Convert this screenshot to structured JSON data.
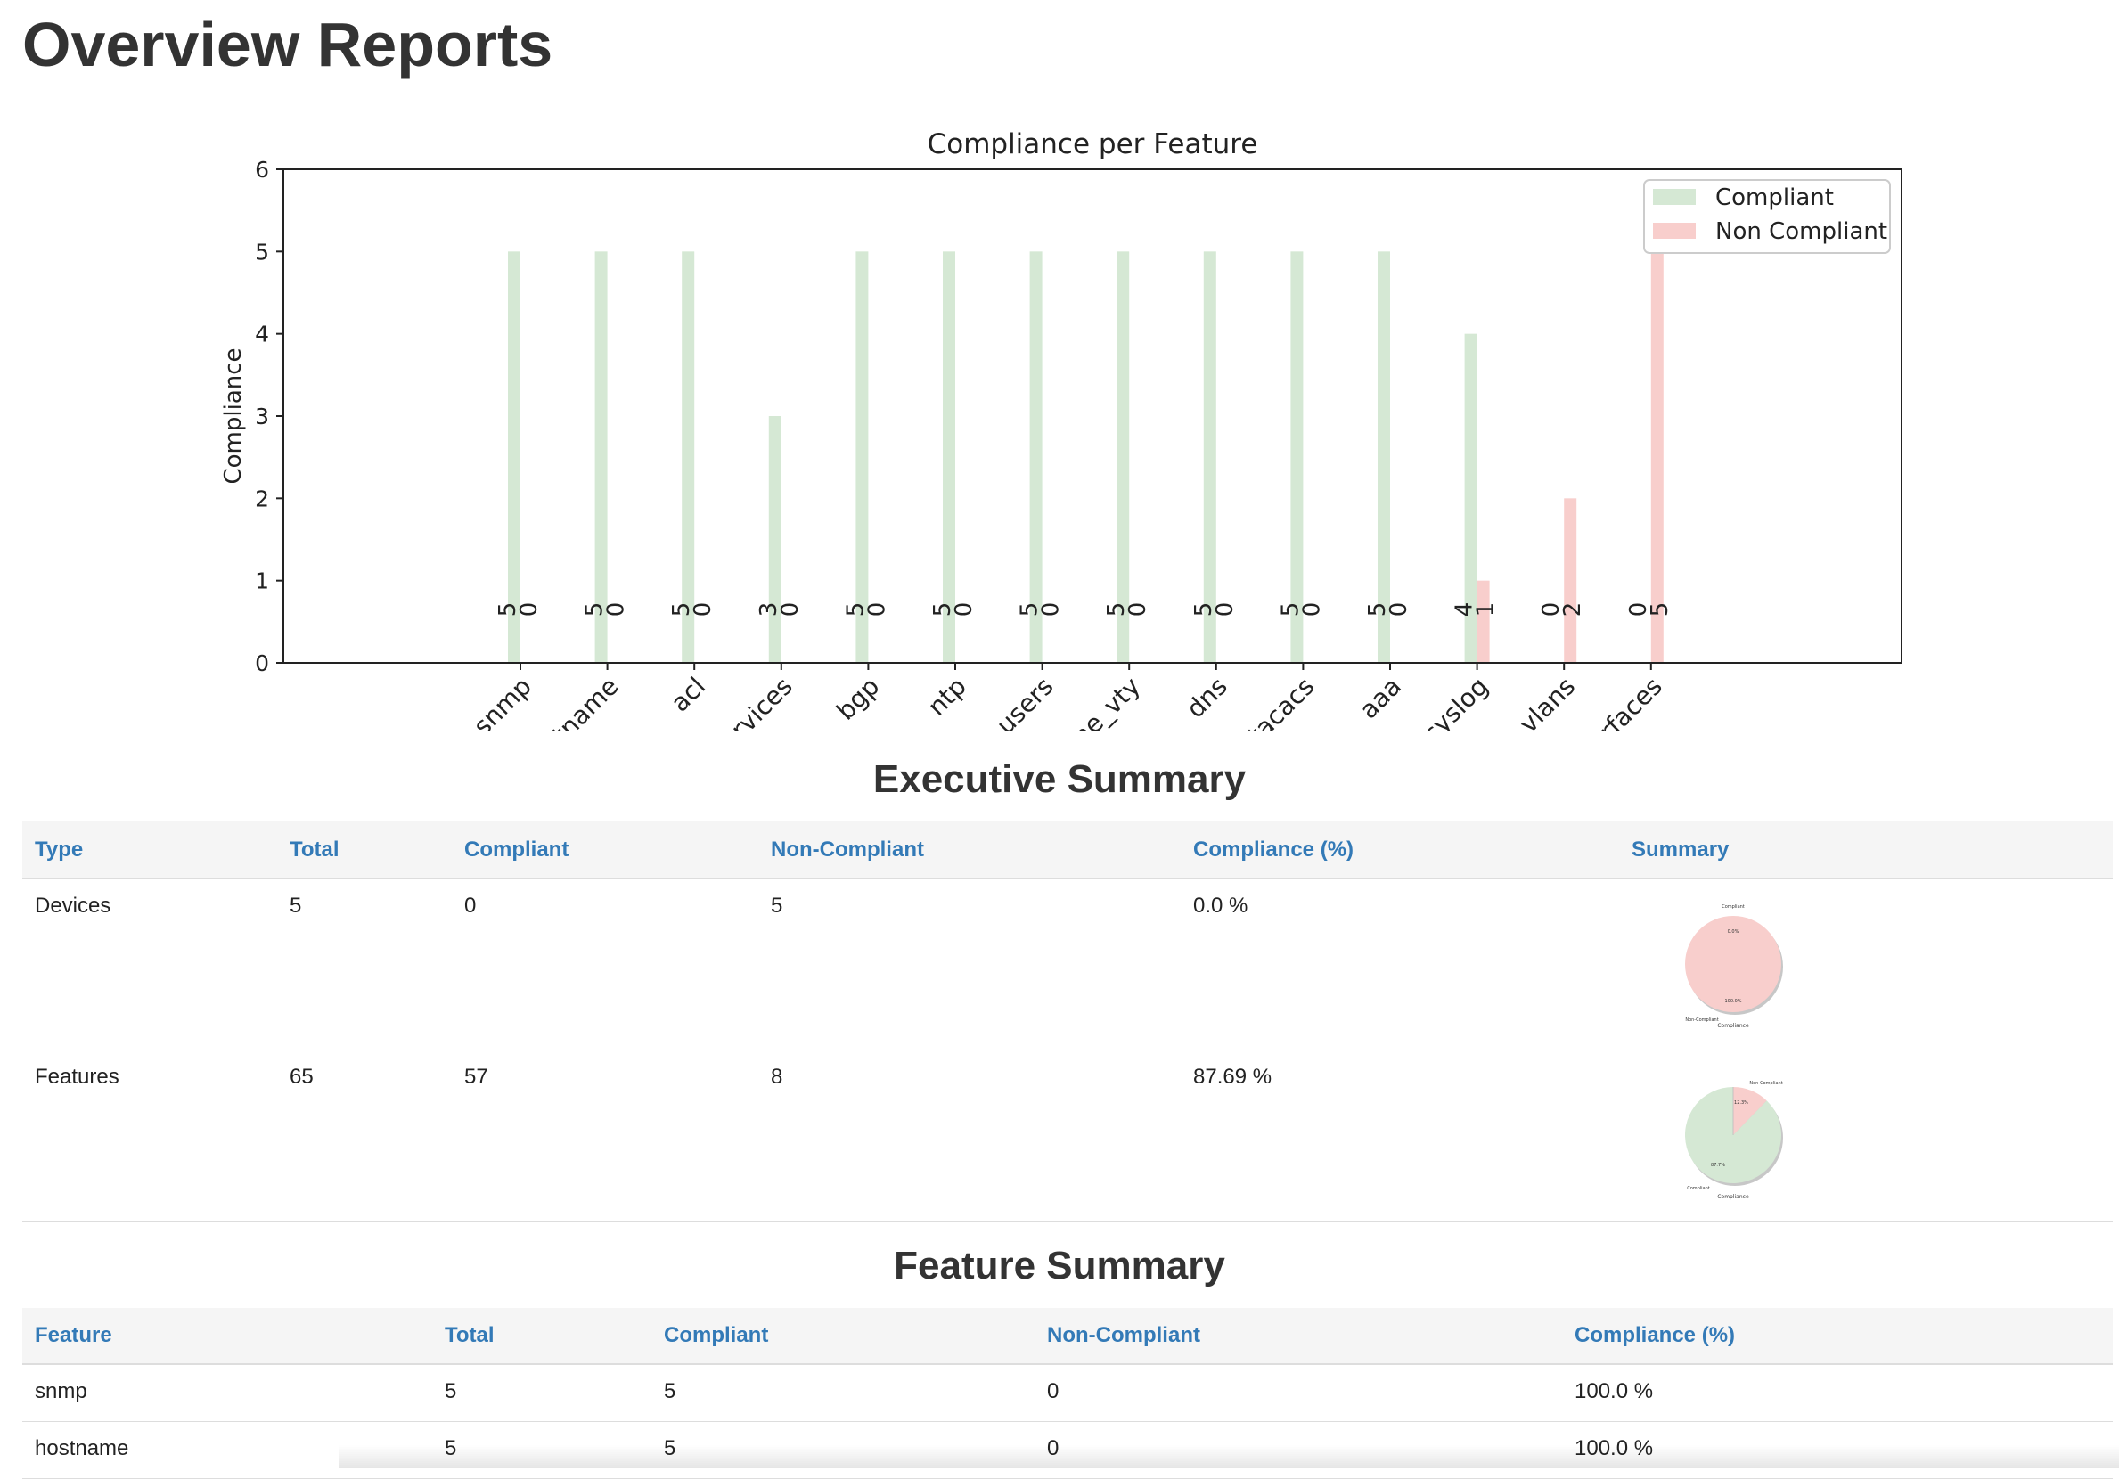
{
  "page": {
    "title": "Overview Reports"
  },
  "colors": {
    "compliant": "#d5e8d4",
    "non_compliant": "#f8cecc",
    "header_text": "#337ab7"
  },
  "chart_data": {
    "type": "bar",
    "title": "Compliance per Feature",
    "xlabel": "",
    "ylabel": "Compliance",
    "ylim": [
      0,
      6
    ],
    "yticks": [
      0,
      1,
      2,
      3,
      4,
      5,
      6
    ],
    "categories": [
      "snmp",
      "hostname",
      "acl",
      "services",
      "bgp",
      "ntp",
      "users",
      "line_vty",
      "dns",
      "tacacs",
      "aaa",
      "syslog",
      "vlans",
      "interfaces"
    ],
    "category_labels_visible": [
      "snmp",
      "'name",
      "acl",
      "rvices",
      "bgp",
      "ntp",
      "users",
      "le_vty",
      "dns",
      "tacacs",
      "aaa",
      "syslog",
      "vlans",
      "rfaces"
    ],
    "series": [
      {
        "name": "Compliant",
        "values": [
          5,
          5,
          5,
          3,
          5,
          5,
          5,
          5,
          5,
          5,
          5,
          4,
          0,
          0
        ]
      },
      {
        "name": "Non Compliant",
        "values": [
          0,
          0,
          0,
          0,
          0,
          0,
          0,
          0,
          0,
          0,
          0,
          1,
          2,
          5
        ]
      }
    ],
    "legend": {
      "placement": "top-right",
      "entries": [
        "Compliant",
        "Non Compliant"
      ]
    },
    "grid": false
  },
  "executive": {
    "title": "Executive Summary",
    "headers": [
      "Type",
      "Total",
      "Compliant",
      "Non-Compliant",
      "Compliance (%)",
      "Summary"
    ],
    "rows": [
      {
        "type": "Devices",
        "total": "5",
        "compliant": "0",
        "non_compliant": "5",
        "percent": "0.0 %",
        "pie": {
          "compliant_pct": 0.0,
          "non_compliant_pct": 100.0,
          "compliant_label": "0.0%",
          "non_compliant_label": "100.0%",
          "label_compliant": "Compliant",
          "label_non_compliant": "Non-Compliant",
          "xlabel": "Compliance"
        }
      },
      {
        "type": "Features",
        "total": "65",
        "compliant": "57",
        "non_compliant": "8",
        "percent": "87.69 %",
        "pie": {
          "compliant_pct": 87.7,
          "non_compliant_pct": 12.3,
          "compliant_label": "87.7%",
          "non_compliant_label": "12.3%",
          "label_compliant": "Compliant",
          "label_non_compliant": "Non-Compliant",
          "xlabel": "Compliance"
        }
      }
    ]
  },
  "feature_summary": {
    "title": "Feature Summary",
    "headers": [
      "Feature",
      "Total",
      "Compliant",
      "Non-Compliant",
      "Compliance (%)"
    ],
    "rows": [
      {
        "feature": "snmp",
        "total": "5",
        "compliant": "5",
        "non_compliant": "0",
        "percent": "100.0 %"
      },
      {
        "feature": "hostname",
        "total": "5",
        "compliant": "5",
        "non_compliant": "0",
        "percent": "100.0 %"
      }
    ]
  }
}
